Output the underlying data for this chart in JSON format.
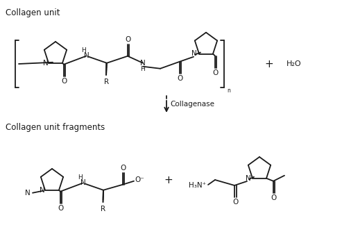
{
  "background_color": "#ffffff",
  "text_color": "#1a1a1a",
  "label_top": "Collagen unit",
  "label_bottom": "Collagen unit fragments",
  "arrow_label": "Collagenase",
  "water": "H₂O",
  "line_color": "#1a1a1a",
  "line_width": 1.3,
  "font_size_label": 8.5,
  "font_size_atom": 7.5,
  "font_size_plus": 11
}
